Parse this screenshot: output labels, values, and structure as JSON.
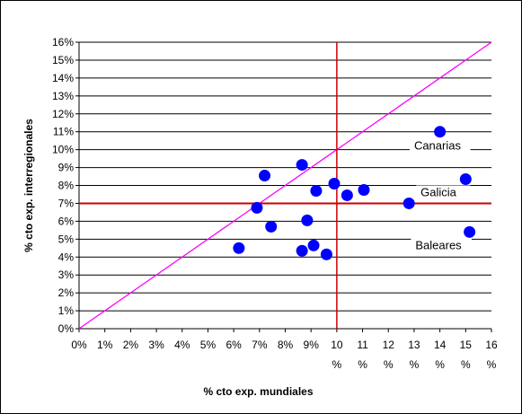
{
  "chart_data": {
    "type": "scatter",
    "title": "",
    "xlabel": "% cto exp. mundiales",
    "ylabel": "% cto exp. interregionales",
    "xlim": [
      0,
      16
    ],
    "ylim": [
      0,
      16
    ],
    "x_ticks": [
      {
        "value": 0,
        "lines": [
          "0%"
        ]
      },
      {
        "value": 1,
        "lines": [
          "1%"
        ]
      },
      {
        "value": 2,
        "lines": [
          "2%"
        ]
      },
      {
        "value": 3,
        "lines": [
          "3%"
        ]
      },
      {
        "value": 4,
        "lines": [
          "4%"
        ]
      },
      {
        "value": 5,
        "lines": [
          "5%"
        ]
      },
      {
        "value": 6,
        "lines": [
          "6%"
        ]
      },
      {
        "value": 7,
        "lines": [
          "7%"
        ]
      },
      {
        "value": 8,
        "lines": [
          "8%"
        ]
      },
      {
        "value": 9,
        "lines": [
          "9%"
        ]
      },
      {
        "value": 10,
        "lines": [
          "10",
          "%"
        ]
      },
      {
        "value": 11,
        "lines": [
          "11",
          "%"
        ]
      },
      {
        "value": 12,
        "lines": [
          "12",
          "%"
        ]
      },
      {
        "value": 13,
        "lines": [
          "13",
          "%"
        ]
      },
      {
        "value": 14,
        "lines": [
          "14",
          "%"
        ]
      },
      {
        "value": 15,
        "lines": [
          "15",
          "%"
        ]
      },
      {
        "value": 16,
        "lines": [
          "16",
          "%"
        ]
      }
    ],
    "y_ticks": [
      "0%",
      "1%",
      "2%",
      "3%",
      "4%",
      "5%",
      "6%",
      "7%",
      "8%",
      "9%",
      "10%",
      "11%",
      "12%",
      "13%",
      "14%",
      "15%",
      "16%"
    ],
    "grid": "horizontal",
    "reference_lines": {
      "vertical_x": 10,
      "horizontal_y": 7,
      "diagonal": [
        [
          0,
          0
        ],
        [
          16,
          16
        ]
      ],
      "reference_color": "#cc0000",
      "diagonal_color": "#ff00ff"
    },
    "marker_color": "#0000ff",
    "points": [
      {
        "x": 6.2,
        "y": 4.5
      },
      {
        "x": 6.9,
        "y": 6.75
      },
      {
        "x": 7.2,
        "y": 8.55
      },
      {
        "x": 7.45,
        "y": 5.7
      },
      {
        "x": 8.65,
        "y": 9.15
      },
      {
        "x": 8.65,
        "y": 4.35
      },
      {
        "x": 8.85,
        "y": 6.05
      },
      {
        "x": 9.1,
        "y": 4.65
      },
      {
        "x": 9.2,
        "y": 7.7
      },
      {
        "x": 9.6,
        "y": 4.15
      },
      {
        "x": 9.9,
        "y": 8.1
      },
      {
        "x": 10.4,
        "y": 7.45
      },
      {
        "x": 11.05,
        "y": 7.75
      },
      {
        "x": 12.8,
        "y": 7.0
      },
      {
        "x": 14.0,
        "y": 11.0
      },
      {
        "x": 15.0,
        "y": 8.35
      },
      {
        "x": 15.15,
        "y": 5.4
      }
    ],
    "annotations": [
      {
        "text": "Canarias",
        "x": 13.0,
        "y": 10.0
      },
      {
        "text": "Galicia",
        "x": 13.25,
        "y": 7.4
      },
      {
        "text": "Baleares",
        "x": 13.05,
        "y": 4.45
      }
    ]
  }
}
